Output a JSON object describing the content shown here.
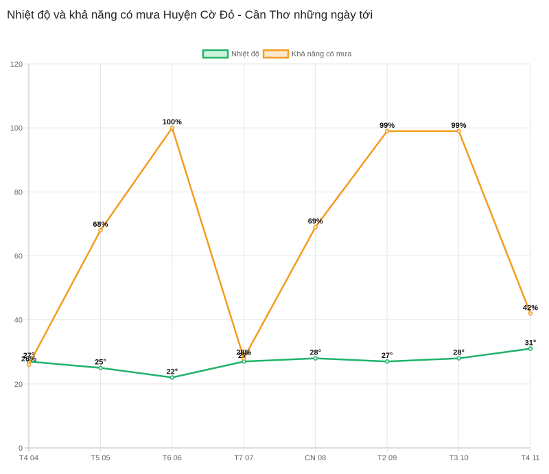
{
  "page": {
    "title": "Nhiệt độ và khả năng có mưa Huyện Cờ Đỏ - Cần Thơ những ngày tới"
  },
  "chart_data": {
    "type": "line",
    "title": "",
    "xlabel": "",
    "ylabel": "",
    "categories": [
      "T4 04",
      "T5 05",
      "T6 06",
      "T7 07",
      "CN 08",
      "T2 09",
      "T3 10",
      "T4 11"
    ],
    "ylim": [
      0,
      120
    ],
    "yticks": [
      0,
      20,
      40,
      60,
      80,
      100,
      120
    ],
    "grid": true,
    "legend_position": "top-center",
    "series": [
      {
        "name": "Nhiệt độ",
        "values": [
          27,
          25,
          22,
          27,
          28,
          27,
          28,
          31
        ],
        "labels": [
          "27°",
          "25°",
          "22°",
          "27°",
          "28°",
          "27°",
          "28°",
          "31°"
        ],
        "color": "#21b36b",
        "fill": "#cdf3dc"
      },
      {
        "name": "Khả năng có mưa",
        "values": [
          26,
          68,
          100,
          28,
          69,
          99,
          99,
          42
        ],
        "labels": [
          "26%",
          "68%",
          "100%",
          "28%",
          "69%",
          "99%",
          "99%",
          "42%"
        ],
        "color": "#f39c1f",
        "fill": "#fde7cc"
      }
    ]
  }
}
